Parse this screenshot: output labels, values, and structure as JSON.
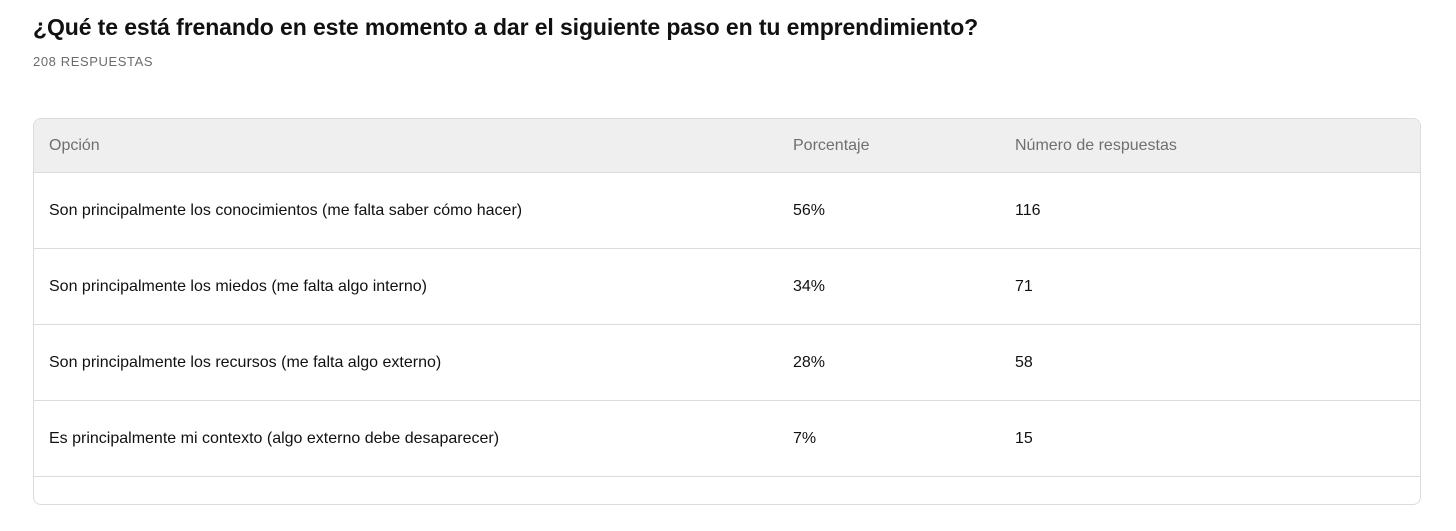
{
  "question": {
    "title": "¿Qué te está frenando en este momento a dar el siguiente paso en tu emprendimiento?",
    "response_count": "208 RESPUESTAS"
  },
  "table": {
    "headers": {
      "option": "Opción",
      "percent": "Porcentaje",
      "count": "Número de respuestas"
    },
    "rows": [
      {
        "option": "Son principalmente los conocimientos (me falta saber cómo hacer)",
        "percent": "56%",
        "count": "116"
      },
      {
        "option": "Son principalmente los miedos (me falta algo interno)",
        "percent": "34%",
        "count": "71"
      },
      {
        "option": "Son principalmente los recursos (me falta algo externo)",
        "percent": "28%",
        "count": "58"
      },
      {
        "option": "Es principalmente mi contexto (algo externo debe desaparecer)",
        "percent": "7%",
        "count": "15"
      }
    ]
  },
  "colors": {
    "header_background": "#efefef",
    "border": "#dcdcdc",
    "muted_text": "#6f6f6f"
  }
}
